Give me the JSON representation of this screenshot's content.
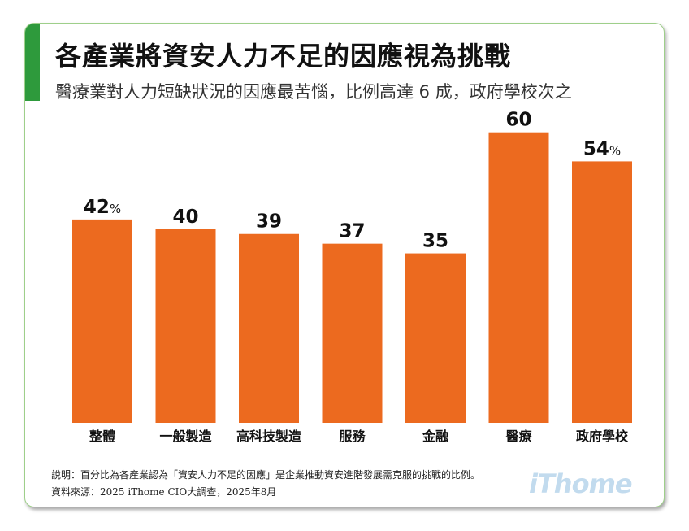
{
  "header": {
    "title": "各產業將資安人力不足的因應視為挑戰",
    "subtitle": "醫療業對人力短缺狀況的因應最苦惱，比例高達 6 成，政府學校次之"
  },
  "chart_data": {
    "type": "bar",
    "categories": [
      "整體",
      "一般製造",
      "高科技製造",
      "服務",
      "金融",
      "醫療",
      "政府學校"
    ],
    "values": [
      42,
      40,
      39,
      37,
      35,
      60,
      54
    ],
    "value_unit": "%",
    "unit_shown_on": [
      "整體",
      "政府學校"
    ],
    "ylim": [
      0,
      67
    ],
    "grid": false,
    "bar_color": "#ec6a1f"
  },
  "footer": {
    "note": "說明：百分比為各產業認為「資安人力不足的因應」是企業推動資安進階發展需克服的挑戰的比例。",
    "source": "資料來源：2025 iThome CIO大調查，2025年8月",
    "logo": "iThome"
  },
  "colors": {
    "accent_green": "#2e9a3c",
    "bar": "#ec6a1f",
    "logo": "#c2dbee"
  }
}
